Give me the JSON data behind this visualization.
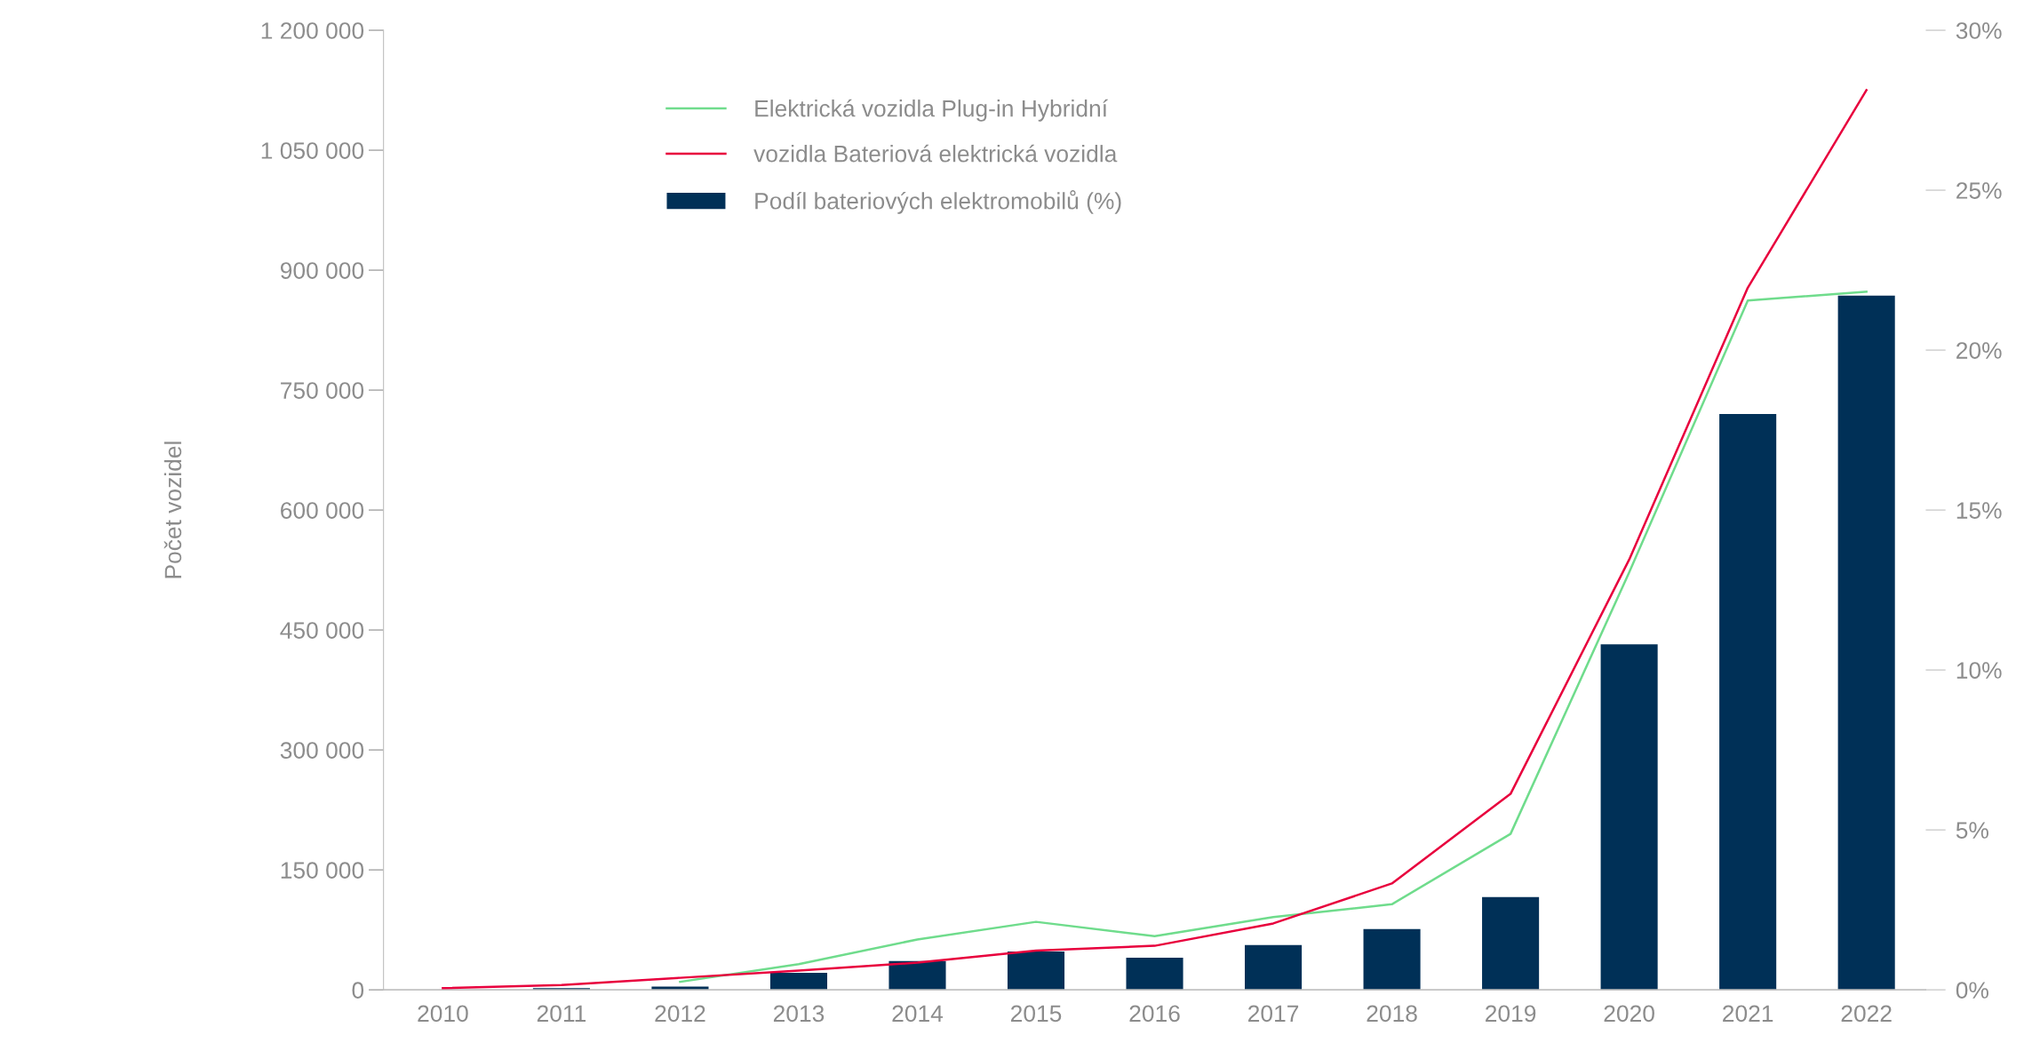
{
  "chart_data": {
    "type": "line",
    "ylabel": "Počet vozidel",
    "categories": [
      "2010",
      "2011",
      "2012",
      "2013",
      "2014",
      "2015",
      "2016",
      "2017",
      "2018",
      "2019",
      "2020",
      "2021",
      "2022"
    ],
    "series": [
      {
        "name": "Elektrická vozidla Plug-in Hybridní",
        "color": "#6fdc8c",
        "values": [
          null,
          null,
          10000,
          32000,
          63000,
          85000,
          67000,
          91000,
          107000,
          195000,
          522000,
          862000,
          873000
        ]
      },
      {
        "name": "vozidla Bateriová elektrická vozidla",
        "color": "#e8003d",
        "values": [
          2000,
          6000,
          15000,
          24000,
          34000,
          49000,
          55000,
          83000,
          133000,
          245000,
          538000,
          878000,
          1125000
        ]
      },
      {
        "name": "Podíl bateriových elektromobilů (%)",
        "type": "bar",
        "axis": "y2",
        "color": "#003057",
        "values": [
          0,
          0.05,
          0.1,
          0.53,
          0.9,
          1.2,
          1.0,
          1.4,
          1.9,
          2.9,
          10.8,
          18.0,
          21.7
        ]
      }
    ],
    "ylim": [
      0,
      1200000
    ],
    "yticks": [
      {
        "value": 0,
        "label": "0"
      },
      {
        "value": 150000,
        "label": "150 000"
      },
      {
        "value": 300000,
        "label": "300 000"
      },
      {
        "value": 450000,
        "label": "450 000"
      },
      {
        "value": 600000,
        "label": "600 000"
      },
      {
        "value": 750000,
        "label": "750 000"
      },
      {
        "value": 900000,
        "label": "900 000"
      },
      {
        "value": 1050000,
        "label": "1 050 000"
      },
      {
        "value": 1200000,
        "label": "1 200 000"
      }
    ],
    "y2lim": [
      0,
      30
    ],
    "y2ticks": [
      {
        "value": 0,
        "label": "0%"
      },
      {
        "value": 5,
        "label": "5%"
      },
      {
        "value": 10,
        "label": "10%"
      },
      {
        "value": 15,
        "label": "15%"
      },
      {
        "value": 20,
        "label": "20%"
      },
      {
        "value": 25,
        "label": "25%"
      },
      {
        "value": 30,
        "label": "30%"
      }
    ],
    "grid": false,
    "legend": "top left"
  }
}
